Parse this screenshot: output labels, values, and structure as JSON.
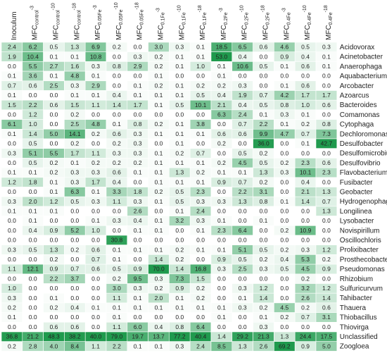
{
  "chart_data": {
    "type": "heatmap",
    "color": "#1f9a4d",
    "columns": [
      {
        "base": "Inoculum"
      },
      {
        "base": "MFC",
        "sub": "control",
        "sup": "-3"
      },
      {
        "base": "MFC",
        "sub": "control",
        "sup": "-10"
      },
      {
        "base": "MFC",
        "sub": "control",
        "sup": "-18"
      },
      {
        "base": "MFC",
        "sub": "0.05Fe",
        "sup": "-3"
      },
      {
        "base": "MFC",
        "sub": "0.05Fe",
        "sup": "-10"
      },
      {
        "base": "MFC",
        "sub": "0.05Fe",
        "sup": "-18"
      },
      {
        "base": "MFC",
        "sub": "0.1Fe",
        "sup": "-3"
      },
      {
        "base": "MFC",
        "sub": "0.1Fe",
        "sup": "-10"
      },
      {
        "base": "MFC",
        "sub": "0.1Fe",
        "sup": "-18"
      },
      {
        "base": "MFC",
        "sub": "0.2Fe",
        "sup": "-3"
      },
      {
        "base": "MFC",
        "sub": "0.2Fe",
        "sup": "-10"
      },
      {
        "base": "MFC",
        "sub": "0.2Fe",
        "sup": "-18"
      },
      {
        "base": "MFC",
        "sub": "0.4Fe",
        "sup": "-3"
      },
      {
        "base": "MFC",
        "sub": "0.4Fe",
        "sup": "-10"
      },
      {
        "base": "MFC",
        "sub": "0.4Fe",
        "sup": "-18"
      }
    ],
    "rows": [
      "Acidovorax",
      "Acinetobacter",
      "Anaerophaga",
      "Aquabacterium",
      "Arcobacter",
      "Azoarcus",
      "Bacteroides",
      "Comamonas",
      "Cytophaga",
      "Dechloromonas",
      "Desulfobacter",
      "Desulfomicrobium",
      "Desulfovibrio",
      "Flavobacterium",
      "Fusibacter",
      "Geobacter",
      "Hydrogenophaga",
      "Longilinea",
      "Lysobacter",
      "Novispirillum",
      "Oscillochloris",
      "Prolixibacter",
      "Prosthecobacter",
      "Pseudomonas",
      "Rhizobium",
      "Sulfuricurvum",
      "Tahibacter",
      "Thauera",
      "Thiobacillus",
      "Thiovirga",
      "Unclassified",
      "Zoogloea"
    ],
    "values": [
      [
        2.4,
        6.2,
        0.5,
        1.3,
        6.9,
        0.2,
        0.0,
        3.0,
        0.3,
        0.1,
        18.5,
        6.5,
        0.6,
        4.6,
        0.5,
        0.3
      ],
      [
        1.9,
        10.4,
        0.1,
        0.1,
        10.8,
        0.0,
        0.3,
        0.2,
        0.1,
        0.1,
        53.0,
        0.4,
        0.0,
        0.9,
        0.4,
        0.1
      ],
      [
        0.0,
        5.5,
        2.7,
        1.6,
        0.3,
        0.8,
        2.9,
        0.2,
        0.1,
        1.0,
        0.1,
        10.6,
        0.5,
        0.1,
        0.6,
        0.1
      ],
      [
        0.1,
        3.6,
        0.1,
        4.8,
        0.1,
        0.0,
        0.0,
        0.1,
        0.0,
        0.0,
        0.1,
        0.0,
        0.0,
        0.0,
        0.0,
        0.0
      ],
      [
        0.7,
        0.6,
        2.5,
        0.3,
        2.9,
        0.0,
        0.1,
        0.2,
        0.1,
        0.2,
        0.2,
        0.3,
        0.0,
        0.1,
        0.6,
        0.0
      ],
      [
        0.1,
        0.0,
        0.0,
        0.1,
        0.1,
        0.4,
        0.1,
        0.1,
        0.1,
        0.5,
        0.4,
        1.9,
        0.7,
        4.2,
        1.7,
        1.7
      ],
      [
        1.5,
        2.2,
        0.6,
        1.5,
        1.1,
        1.4,
        1.7,
        0.1,
        0.5,
        10.1,
        2.1,
        0.4,
        0.5,
        0.8,
        1.0,
        0.6
      ],
      [
        0.0,
        1.2,
        0.0,
        0.2,
        0.0,
        0.0,
        0.0,
        0.0,
        0.0,
        0.0,
        6.3,
        2.4,
        0.1,
        0.3,
        0.1,
        0.0
      ],
      [
        6.1,
        1.0,
        0.0,
        2.5,
        4.8,
        0.1,
        0.8,
        0.2,
        0.1,
        3.8,
        0.0,
        0.7,
        2.2,
        0.1,
        0.2,
        0.8
      ],
      [
        0.1,
        1.4,
        5.0,
        14.1,
        0.2,
        0.6,
        0.3,
        0.1,
        0.1,
        0.1,
        0.6,
        0.6,
        9.9,
        4.7,
        0.7,
        7.3
      ],
      [
        0.0,
        0.5,
        0.0,
        0.2,
        0.0,
        0.2,
        0.3,
        0.0,
        0.1,
        0.0,
        0.2,
        0.0,
        36.0,
        0.0,
        0.1,
        42.7
      ],
      [
        0.3,
        5.1,
        5.5,
        1.7,
        1.1,
        0.3,
        0.3,
        0.1,
        0.2,
        0.7,
        0.0,
        0.5,
        0.2,
        0.0,
        0.0,
        0.0
      ],
      [
        0.0,
        0.5,
        0.2,
        0.1,
        0.2,
        0.2,
        0.2,
        0.1,
        0.1,
        0.1,
        0.2,
        4.5,
        0.5,
        0.2,
        2.3,
        0.6
      ],
      [
        0.1,
        0.1,
        0.2,
        0.3,
        0.3,
        0.6,
        0.1,
        0.1,
        1.3,
        0.2,
        0.1,
        0.1,
        1.3,
        0.3,
        10.1,
        2.3
      ],
      [
        1.2,
        1.8,
        0.1,
        0.3,
        1.7,
        0.4,
        0.0,
        0.1,
        0.1,
        0.1,
        0.9,
        0.7,
        0.2,
        0.0,
        0.4,
        0.0
      ],
      [
        0.0,
        0.0,
        0.1,
        6.3,
        0.1,
        3.3,
        1.8,
        0.2,
        0.5,
        2.3,
        0.0,
        2.2,
        3.1,
        0.0,
        2.1,
        1.3
      ],
      [
        0.3,
        2.0,
        1.2,
        0.5,
        0.3,
        1.1,
        0.3,
        0.1,
        0.5,
        0.3,
        0.3,
        1.3,
        0.8,
        0.1,
        1.4,
        0.7
      ],
      [
        0.1,
        0.1,
        0.1,
        0.0,
        0.0,
        0.0,
        2.6,
        0.0,
        0.1,
        2.4,
        0.0,
        0.0,
        0.0,
        0.0,
        0.0,
        1.3
      ],
      [
        0.0,
        0.1,
        0.0,
        0.0,
        0.1,
        0.3,
        0.4,
        0.1,
        3.2,
        0.3,
        0.1,
        0.0,
        0.1,
        0.0,
        0.0,
        0.0
      ],
      [
        0.0,
        0.4,
        0.9,
        5.2,
        1.0,
        0.0,
        0.1,
        0.1,
        0.0,
        0.1,
        2.3,
        6.4,
        0.0,
        0.2,
        10.9,
        0.0
      ],
      [
        0.0,
        0.0,
        0.0,
        0.0,
        0.0,
        30.8,
        0.0,
        0.0,
        0.0,
        0.0,
        0.0,
        0.0,
        0.0,
        0.0,
        0.0,
        0.0
      ],
      [
        0.3,
        0.5,
        1.3,
        0.2,
        0.6,
        0.1,
        0.1,
        0.1,
        0.2,
        0.1,
        0.1,
        5.1,
        0.5,
        0.2,
        0.3,
        1.2
      ],
      [
        0.0,
        0.0,
        0.2,
        0.0,
        0.7,
        0.1,
        0.0,
        1.4,
        0.2,
        0.0,
        0.9,
        0.5,
        0.2,
        0.4,
        5.3,
        0.2
      ],
      [
        1.1,
        12.1,
        0.9,
        0.7,
        0.6,
        0.5,
        0.9,
        70.0,
        1.4,
        16.8,
        0.3,
        2.5,
        0.3,
        0.5,
        4.5,
        0.9
      ],
      [
        0.0,
        0.0,
        2.2,
        3.7,
        0.0,
        0.2,
        9.5,
        0.3,
        7.3,
        1.5,
        0.0,
        0.0,
        0.0,
        0.0,
        0.2,
        0.0
      ],
      [
        1.0,
        0.0,
        0.0,
        0.0,
        0.0,
        3.0,
        0.3,
        0.2,
        0.9,
        0.2,
        0.0,
        0.3,
        1.2,
        0.0,
        3.2,
        1.2
      ],
      [
        0.3,
        0.0,
        0.1,
        0.0,
        0.0,
        1.1,
        0.1,
        2.0,
        0.1,
        0.2,
        0.0,
        0.1,
        1.4,
        0.0,
        2.6,
        1.4
      ],
      [
        0.2,
        0.0,
        0.2,
        0.4,
        0.1,
        0.1,
        0.1,
        0.1,
        0.1,
        0.1,
        0.1,
        0.3,
        0.2,
        4.5,
        0.2,
        0.6
      ],
      [
        0.1,
        0.0,
        0.0,
        0.0,
        0.0,
        0.1,
        0.0,
        0.0,
        0.0,
        0.0,
        0.1,
        0.0,
        0.1,
        0.2,
        0.7,
        3.1
      ],
      [
        0.0,
        0.0,
        0.6,
        0.6,
        0.0,
        1.1,
        6.0,
        0.4,
        0.8,
        6.4,
        0.0,
        0.0,
        0.3,
        0.0,
        0.0,
        0.0
      ],
      [
        36.8,
        21.2,
        48.3,
        38.2,
        40.0,
        79.0,
        19.7,
        13.7,
        77.2,
        40.4,
        1.4,
        29.2,
        21.3,
        1.3,
        24.4,
        17.5
      ],
      [
        0.2,
        2.8,
        4.0,
        8.4,
        1.1,
        2.2,
        0.1,
        0.1,
        0.3,
        2.4,
        8.5,
        1.3,
        2.6,
        69.2,
        0.9,
        5.0
      ]
    ],
    "value_labels": [
      [
        "2.4",
        "6.2",
        "0.5",
        "1.3",
        "6.9",
        "0.2",
        "0.0",
        "3.0",
        "0.3",
        "0.1",
        "18.5",
        "6.5",
        "0.6",
        "4.6",
        "0.5",
        "0.3"
      ],
      [
        "1.9",
        "10.4",
        "0.1",
        "0.1",
        "10.8",
        "0.0",
        "0.3",
        "0.2",
        "0.1",
        "0.1",
        "53.0",
        "0.4",
        "0.0",
        "0.9",
        "0.4",
        "0.1"
      ],
      [
        "0.0",
        "5.5",
        "2.7",
        "1.6",
        "0.3",
        "0.8",
        "2.9",
        "0.2",
        "0.1",
        "1.0",
        "0.1",
        "10.6",
        "0.5",
        "0.1",
        "0.6",
        "0.1"
      ],
      [
        "0.1",
        "3.6",
        "0.1",
        "4.8",
        "0.1",
        "0.0",
        "0.0",
        "0.1",
        "0.0",
        "0.0",
        "0.1",
        "0.0",
        "0.0",
        "0.0",
        "0.0",
        "0.0"
      ],
      [
        "0.7",
        "0.6",
        "2.5",
        "0.3",
        "2.9",
        "0.0",
        "0.1",
        "0.2",
        "0.1",
        "0.2",
        "0.2",
        "0.3",
        "0.0",
        "0.1",
        "0.6",
        "0.0"
      ],
      [
        "0.1",
        "0.0",
        "0.0",
        "0.1",
        "0.1",
        "0.4",
        "0.1",
        "0.1",
        "0.1",
        "0.5",
        "0.4",
        "1.9",
        "0.7",
        "4.2",
        "1.7",
        "1.7"
      ],
      [
        "1.5",
        "2.2",
        "0.6",
        "1.5",
        "1.1",
        "1.4",
        "1.7",
        "0.1",
        "0.5",
        "10.1",
        "2.1",
        "0.4",
        "0.5",
        "0.8",
        "1.0",
        "0.6"
      ],
      [
        "0.0",
        "1.2",
        "0.0",
        "0.2",
        "0.0",
        "0.0",
        "0.0",
        "0.0",
        "0.0",
        "0.0",
        "6.3",
        "2.4",
        "0.1",
        "0.3",
        "0.1",
        "0.0"
      ],
      [
        "6.1",
        "1.0",
        "0.0",
        "2.5",
        "4.8",
        "0.1",
        "0.8",
        "0.2",
        "0.1",
        "3.8",
        "0.0",
        "0.7",
        "2.2",
        "0.1",
        "0.2",
        "0.8"
      ],
      [
        "0.1",
        "1.4",
        "5.0",
        "14.1",
        "0.2",
        "0.6",
        "0.3",
        "0.1",
        "0.1",
        "0.1",
        "0.6",
        "0.6",
        "9.9",
        "4.7",
        "0.7",
        "7.3"
      ],
      [
        "0.0",
        "0.5",
        "0.0",
        "0.2",
        "0.0",
        "0.2",
        "0.3",
        "0.0",
        "0.1",
        "0.0",
        "0.2",
        "0.0",
        "36.0",
        "0.0",
        "0.1",
        "42.7"
      ],
      [
        "0.3",
        "5.1",
        "5.5",
        "1.7",
        "1.1",
        "0.3",
        "0.3",
        "0.1",
        "0.2",
        "0.7",
        "0.0",
        "0.5",
        "0.2",
        "0.0",
        "0.0",
        "0.0"
      ],
      [
        "0.0",
        "0.5",
        "0.2",
        "0.1",
        "0.2",
        "0.2",
        "0.2",
        "0.1",
        "0.1",
        "0.1",
        "0.2",
        "4.5",
        "0.5",
        "0.2",
        "2.3",
        "0.6"
      ],
      [
        "0.1",
        "0.1",
        "0.2",
        "0.3",
        "0.3",
        "0.6",
        "0.1",
        "0.1",
        "1.3",
        "0.2",
        "0.1",
        "0.1",
        "1.3",
        "0.3",
        "10.1",
        "2.3"
      ],
      [
        "1.2",
        "1.8",
        "0.1",
        "0.3",
        "1.7",
        "0.4",
        "0.0",
        "0.1",
        "0.1",
        "0.1",
        "0.9",
        "0.7",
        "0.2",
        "0.0",
        "0.4",
        "0.0"
      ],
      [
        "0.0",
        "0.0",
        "0.1",
        "6.3",
        "0.1",
        "3.3",
        "1.8",
        "0.2",
        "0.5",
        "2.3",
        "0.0",
        "2.2",
        "3.1",
        "0.0",
        "2.1",
        "1.3"
      ],
      [
        "0.3",
        "2.0",
        "1.2",
        "0.5",
        "0.3",
        "1.1",
        "0.3",
        "0.1",
        "0.5",
        "0.3",
        "0.3",
        "1.3",
        "0.8",
        "0.1",
        "1.4",
        "0.7"
      ],
      [
        "0.1",
        "0.1",
        "0.1",
        "0.0",
        "0.0",
        "0.0",
        "2.6",
        "0.0",
        "0.1",
        "2.4",
        "0.0",
        "0.0",
        "0.0",
        "0.0",
        "0.0",
        "1.3"
      ],
      [
        "0.0",
        "0.1",
        "0.0",
        "0.0",
        "0.1",
        "0.3",
        "0.4",
        "0.1",
        "3.2",
        "0.3",
        "0.1",
        "0.0",
        "0.1",
        "0.0",
        "0.0",
        "0.0"
      ],
      [
        "0.0",
        "0.4",
        "0.9",
        "5.2",
        "1.0",
        "0.0",
        "0.1",
        "0.1",
        "0.0",
        "0.1",
        "2.3",
        "6.4",
        "0.0",
        "0.2",
        "10.9",
        "0.0"
      ],
      [
        "0.0",
        "0.0",
        "0.0",
        "0.0",
        "0.0",
        "30.8",
        "0.0",
        "0.0",
        "0.0",
        "0.0",
        "0.0",
        "0.0",
        "0.0",
        "0.0",
        "0.0",
        "0.0"
      ],
      [
        "0.3",
        "0.5",
        "1.3",
        "0.2",
        "0.6",
        "0.1",
        "0.1",
        "0.1",
        "0.2",
        "0.1",
        "0.1",
        "5.1",
        "0.5",
        "0.2",
        "0.3",
        "1.2"
      ],
      [
        "0.0",
        "0.0",
        "0.2",
        "0.0",
        "0.7",
        "0.1",
        "0.0",
        "1.4",
        "0.2",
        "0.0",
        "0.9",
        "0.5",
        "0.2",
        "0.4",
        "5.3",
        "0.2"
      ],
      [
        "1.1",
        "12.1",
        "0.9",
        "0.7",
        "0.6",
        "0.5",
        "0.9",
        "70.0",
        "1.4",
        "16.8",
        "0.3",
        "2.5",
        "0.3",
        "0.5",
        "4.5",
        "0.9"
      ],
      [
        "0.0",
        "0.0",
        "2.2",
        "3.7",
        "0.0",
        "0.2",
        "9.5",
        "0.3",
        "7.3",
        "1.5",
        "0.0",
        "0.0",
        "0.0",
        "0.0",
        "0.2",
        "0.0"
      ],
      [
        "1.0",
        "0.0",
        "0.0",
        "0.0",
        "0.0",
        "3.0",
        "0.3",
        "0.2",
        "0.9",
        "0.2",
        "0.0",
        "0.3",
        "1.2",
        "0.0",
        "3.2",
        "1.2"
      ],
      [
        "0.3",
        "0.0",
        "0.1",
        "0.0",
        "0.0",
        "1.1",
        "0.1",
        "2.0",
        "0.1",
        "0.2",
        "0.0",
        "0.1",
        "1.4",
        "0.0",
        "2.6",
        "1.4"
      ],
      [
        "0.2",
        "0.0",
        "0.2",
        "0.4",
        "0.1",
        "0.1",
        "0.1",
        "0.1",
        "0.1",
        "0.1",
        "0.1",
        "0.3",
        "0.2",
        "4.5",
        "0.2",
        "0.6"
      ],
      [
        "0.1",
        "0.0",
        "0.0",
        "0.0",
        "0.0",
        "0.1",
        "0.0",
        "0.0",
        "0.0",
        "0.0",
        "0.1",
        "0.0",
        "0.1",
        "0.2",
        "0.7",
        "3.1"
      ],
      [
        "0.0",
        "0.0",
        "0.6",
        "0.6",
        "0.0",
        "1.1",
        "6.0",
        "0.4",
        "0.8",
        "6.4",
        "0.0",
        "0.0",
        "0.3",
        "0.0",
        "0.0",
        "0.0"
      ],
      [
        "36.8",
        "21.2",
        "48.3",
        "38.2",
        "40.0",
        "79.0",
        "19.7",
        "13.7",
        "77.2",
        "40.4",
        "1.4",
        "29.2",
        "21.3",
        "1.3",
        "24.4",
        "17.5"
      ],
      [
        "0.2",
        "2.8",
        "4.0",
        "8.4",
        "1.1",
        "2.2",
        "0.1",
        "0.1",
        "0.3",
        "2.4",
        "8.5",
        "1.3",
        "2.6",
        "69.2",
        "0.9",
        "5.0"
      ]
    ]
  }
}
